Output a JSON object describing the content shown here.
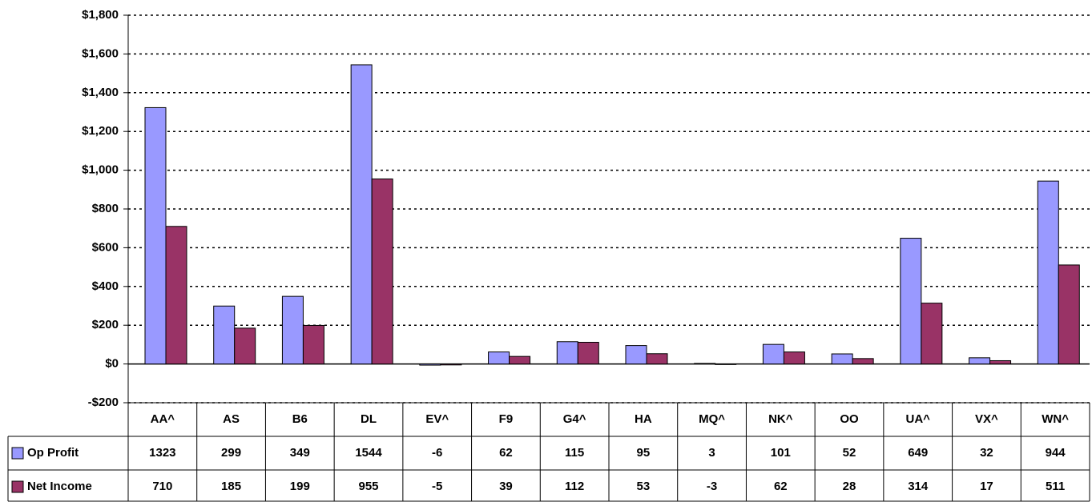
{
  "chart_data": {
    "type": "bar",
    "categories": [
      "AA^",
      "AS",
      "B6",
      "DL",
      "EV^",
      "F9",
      "G4^",
      "HA",
      "MQ^",
      "NK^",
      "OO",
      "UA^",
      "VX^",
      "WN^"
    ],
    "series": [
      {
        "name": "Op Profit",
        "color": "#9999ff",
        "values": [
          1323,
          299,
          349,
          1544,
          -6,
          62,
          115,
          95,
          3,
          101,
          52,
          649,
          32,
          944
        ]
      },
      {
        "name": "Net Income",
        "color": "#993366",
        "values": [
          710,
          185,
          199,
          955,
          -5,
          39,
          112,
          53,
          -3,
          62,
          28,
          314,
          17,
          511
        ]
      }
    ],
    "ylim": [
      -200,
      1800
    ],
    "yticks": [
      {
        "value": -200,
        "label": "-$200"
      },
      {
        "value": 0,
        "label": "$0"
      },
      {
        "value": 200,
        "label": "$200"
      },
      {
        "value": 400,
        "label": "$400"
      },
      {
        "value": 600,
        "label": "$600"
      },
      {
        "value": 800,
        "label": "$800"
      },
      {
        "value": 1000,
        "label": "$1,000"
      },
      {
        "value": 1200,
        "label": "$1,200"
      },
      {
        "value": 1400,
        "label": "$1,400"
      },
      {
        "value": 1600,
        "label": "$1,600"
      },
      {
        "value": 1800,
        "label": "$1,800"
      }
    ],
    "grid": true
  }
}
